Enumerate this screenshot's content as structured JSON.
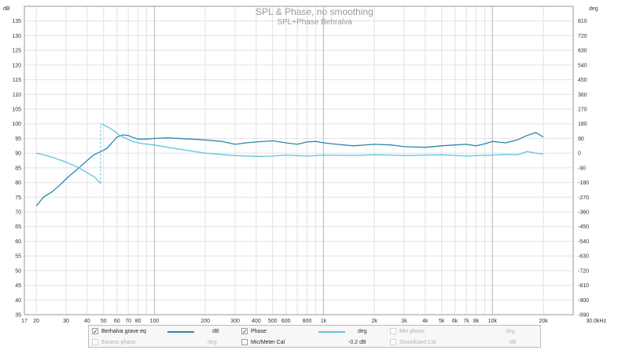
{
  "chart_data": {
    "type": "line",
    "title": "SPL & Phase, no smoothing",
    "subtitle": "SPL+Phase Behralva",
    "x_unit": "Hz",
    "x_scale": "log",
    "xlim": [
      17,
      30000
    ],
    "x_ticks": [
      {
        "v": 17,
        "t": "17"
      },
      {
        "v": 20,
        "t": "20"
      },
      {
        "v": 30,
        "t": "30"
      },
      {
        "v": 40,
        "t": "40"
      },
      {
        "v": 50,
        "t": "50"
      },
      {
        "v": 60,
        "t": "60"
      },
      {
        "v": 70,
        "t": "70"
      },
      {
        "v": 80,
        "t": "80"
      },
      {
        "v": 100,
        "t": "100"
      },
      {
        "v": 200,
        "t": "200"
      },
      {
        "v": 300,
        "t": "300"
      },
      {
        "v": 400,
        "t": "400"
      },
      {
        "v": 500,
        "t": "500"
      },
      {
        "v": 600,
        "t": "600"
      },
      {
        "v": 800,
        "t": "800"
      },
      {
        "v": 1000,
        "t": "1k"
      },
      {
        "v": 2000,
        "t": "2k"
      },
      {
        "v": 3000,
        "t": "3k"
      },
      {
        "v": 4000,
        "t": "4k"
      },
      {
        "v": 5000,
        "t": "5k"
      },
      {
        "v": 6000,
        "t": "6k"
      },
      {
        "v": 7000,
        "t": "7k"
      },
      {
        "v": 8000,
        "t": "8k"
      },
      {
        "v": 10000,
        "t": "10k"
      },
      {
        "v": 20000,
        "t": "20k"
      },
      {
        "v": 30000,
        "t": "30.0kHz"
      }
    ],
    "y_left": {
      "unit": "dB",
      "range": [
        35,
        140
      ],
      "ticks": [
        35,
        40,
        45,
        50,
        55,
        60,
        65,
        70,
        75,
        80,
        85,
        90,
        95,
        100,
        105,
        110,
        115,
        120,
        125,
        130,
        135
      ]
    },
    "y_right": {
      "unit": "deg",
      "range": [
        -990,
        900
      ],
      "ticks": [
        -990,
        -900,
        -810,
        -720,
        -630,
        -540,
        -450,
        -360,
        -270,
        -180,
        -90,
        0,
        90,
        180,
        270,
        360,
        450,
        540,
        630,
        720,
        810
      ]
    },
    "grid": true,
    "series": [
      {
        "name": "Berhalva grave eq",
        "unit": "dB",
        "axis": "left",
        "color": "#2f86a8",
        "x": [
          20,
          22,
          25,
          28,
          31,
          35,
          40,
          44,
          48,
          52,
          56,
          60,
          65,
          70,
          75,
          80,
          90,
          100,
          120,
          150,
          200,
          250,
          300,
          350,
          400,
          500,
          600,
          700,
          800,
          900,
          1000,
          1200,
          1500,
          2000,
          2500,
          3000,
          4000,
          5000,
          6000,
          7000,
          8000,
          9000,
          10000,
          12000,
          14000,
          16000,
          18000,
          20000
        ],
        "values": [
          72,
          75,
          77,
          79.5,
          82,
          84.5,
          87.5,
          89.5,
          90.5,
          91.5,
          93.5,
          95.5,
          96.2,
          96,
          95.3,
          94.8,
          94.8,
          95,
          95.2,
          94.9,
          94.5,
          94,
          93,
          93.5,
          93.8,
          94.2,
          93.5,
          93,
          93.8,
          94,
          93.5,
          93,
          92.5,
          93,
          92.8,
          92.2,
          92,
          92.5,
          92.8,
          93,
          92.5,
          93.2,
          94,
          93.5,
          94.5,
          96,
          97,
          95.5
        ]
      },
      {
        "name": "Phase",
        "unit": "deg",
        "axis": "right",
        "color": "#5dc3e0",
        "x": [
          20,
          23,
          26,
          30,
          35,
          40,
          44,
          48,
          48.01,
          52,
          57,
          62,
          68,
          75,
          85,
          100,
          120,
          150,
          200,
          250,
          300,
          400,
          500,
          600,
          700,
          800,
          1000,
          1500,
          2000,
          2500,
          3000,
          4000,
          5000,
          6000,
          7000,
          8000,
          10000,
          12000,
          14000,
          16000,
          18000,
          20000
        ],
        "values": [
          0,
          -15,
          -32,
          -55,
          -85,
          -120,
          -145,
          -185,
          180,
          165,
          140,
          110,
          90,
          70,
          58,
          50,
          35,
          20,
          0,
          -8,
          -15,
          -20,
          -18,
          -12,
          -15,
          -18,
          -12,
          -14,
          -10,
          -12,
          -15,
          -12,
          -10,
          -14,
          -18,
          -15,
          -12,
          -8,
          -10,
          10,
          0,
          -5
        ]
      }
    ]
  },
  "legend": {
    "row1": [
      {
        "label": "Berhalva grave eq",
        "checked": true,
        "unit": "dB",
        "color": "#2f86a8"
      },
      {
        "label": "Phase",
        "checked": true,
        "unit": "deg",
        "color": "#5dc3e0"
      },
      {
        "label": "Min phase",
        "checked": false,
        "unit": "deg"
      }
    ],
    "row2": [
      {
        "label": "Excess phase",
        "checked": false,
        "unit": "deg"
      },
      {
        "label": "Mic/Meter Cal",
        "checked": false,
        "unit": "-0.2 dB"
      },
      {
        "label": "Soundcard Cal",
        "checked": false,
        "unit": "dB"
      }
    ],
    "check_mark": "✓"
  }
}
